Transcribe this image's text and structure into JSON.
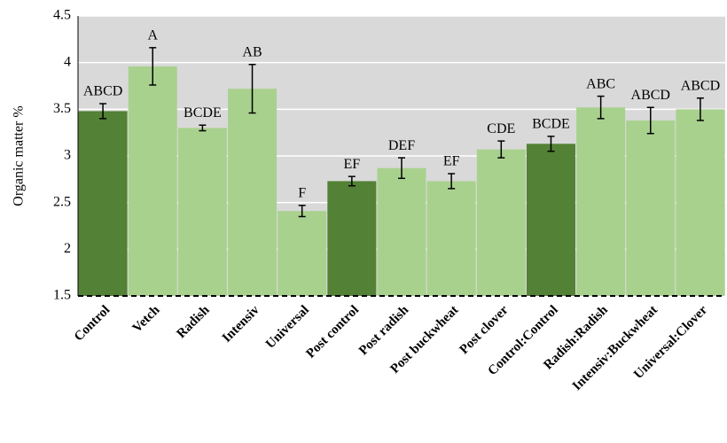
{
  "chart_data": {
    "type": "bar",
    "y_label": "Organic matter %",
    "categories": [
      "Control",
      "Vetch",
      "Radish",
      "Intensiv",
      "Universal",
      "Post control",
      "Post radish",
      "Post buckwheat",
      "Post clover",
      "Control:Control",
      "Radish:Radish",
      "Intensiv:Buckwheat",
      "Universal:Clover"
    ],
    "values": [
      3.48,
      3.96,
      3.3,
      3.72,
      2.41,
      2.73,
      2.87,
      2.73,
      3.07,
      3.13,
      3.52,
      3.38,
      3.5
    ],
    "errors": [
      0.08,
      0.2,
      0.03,
      0.26,
      0.06,
      0.05,
      0.11,
      0.08,
      0.09,
      0.08,
      0.12,
      0.14,
      0.12
    ],
    "letters": [
      "ABCD",
      "A",
      "BCDE",
      "AB",
      "F",
      "EF",
      "DEF",
      "EF",
      "CDE",
      "BCDE",
      "ABC",
      "ABCD",
      "ABCD"
    ],
    "colors": [
      "#538135",
      "#a9d18e",
      "#a9d18e",
      "#a9d18e",
      "#a9d18e",
      "#538135",
      "#a9d18e",
      "#a9d18e",
      "#a9d18e",
      "#538135",
      "#a9d18e",
      "#a9d18e",
      "#a9d18e"
    ],
    "ylim": [
      1.5,
      4.5
    ],
    "yticks": [
      1.5,
      2,
      2.5,
      3,
      3.5,
      4,
      4.5
    ],
    "grid": true
  }
}
